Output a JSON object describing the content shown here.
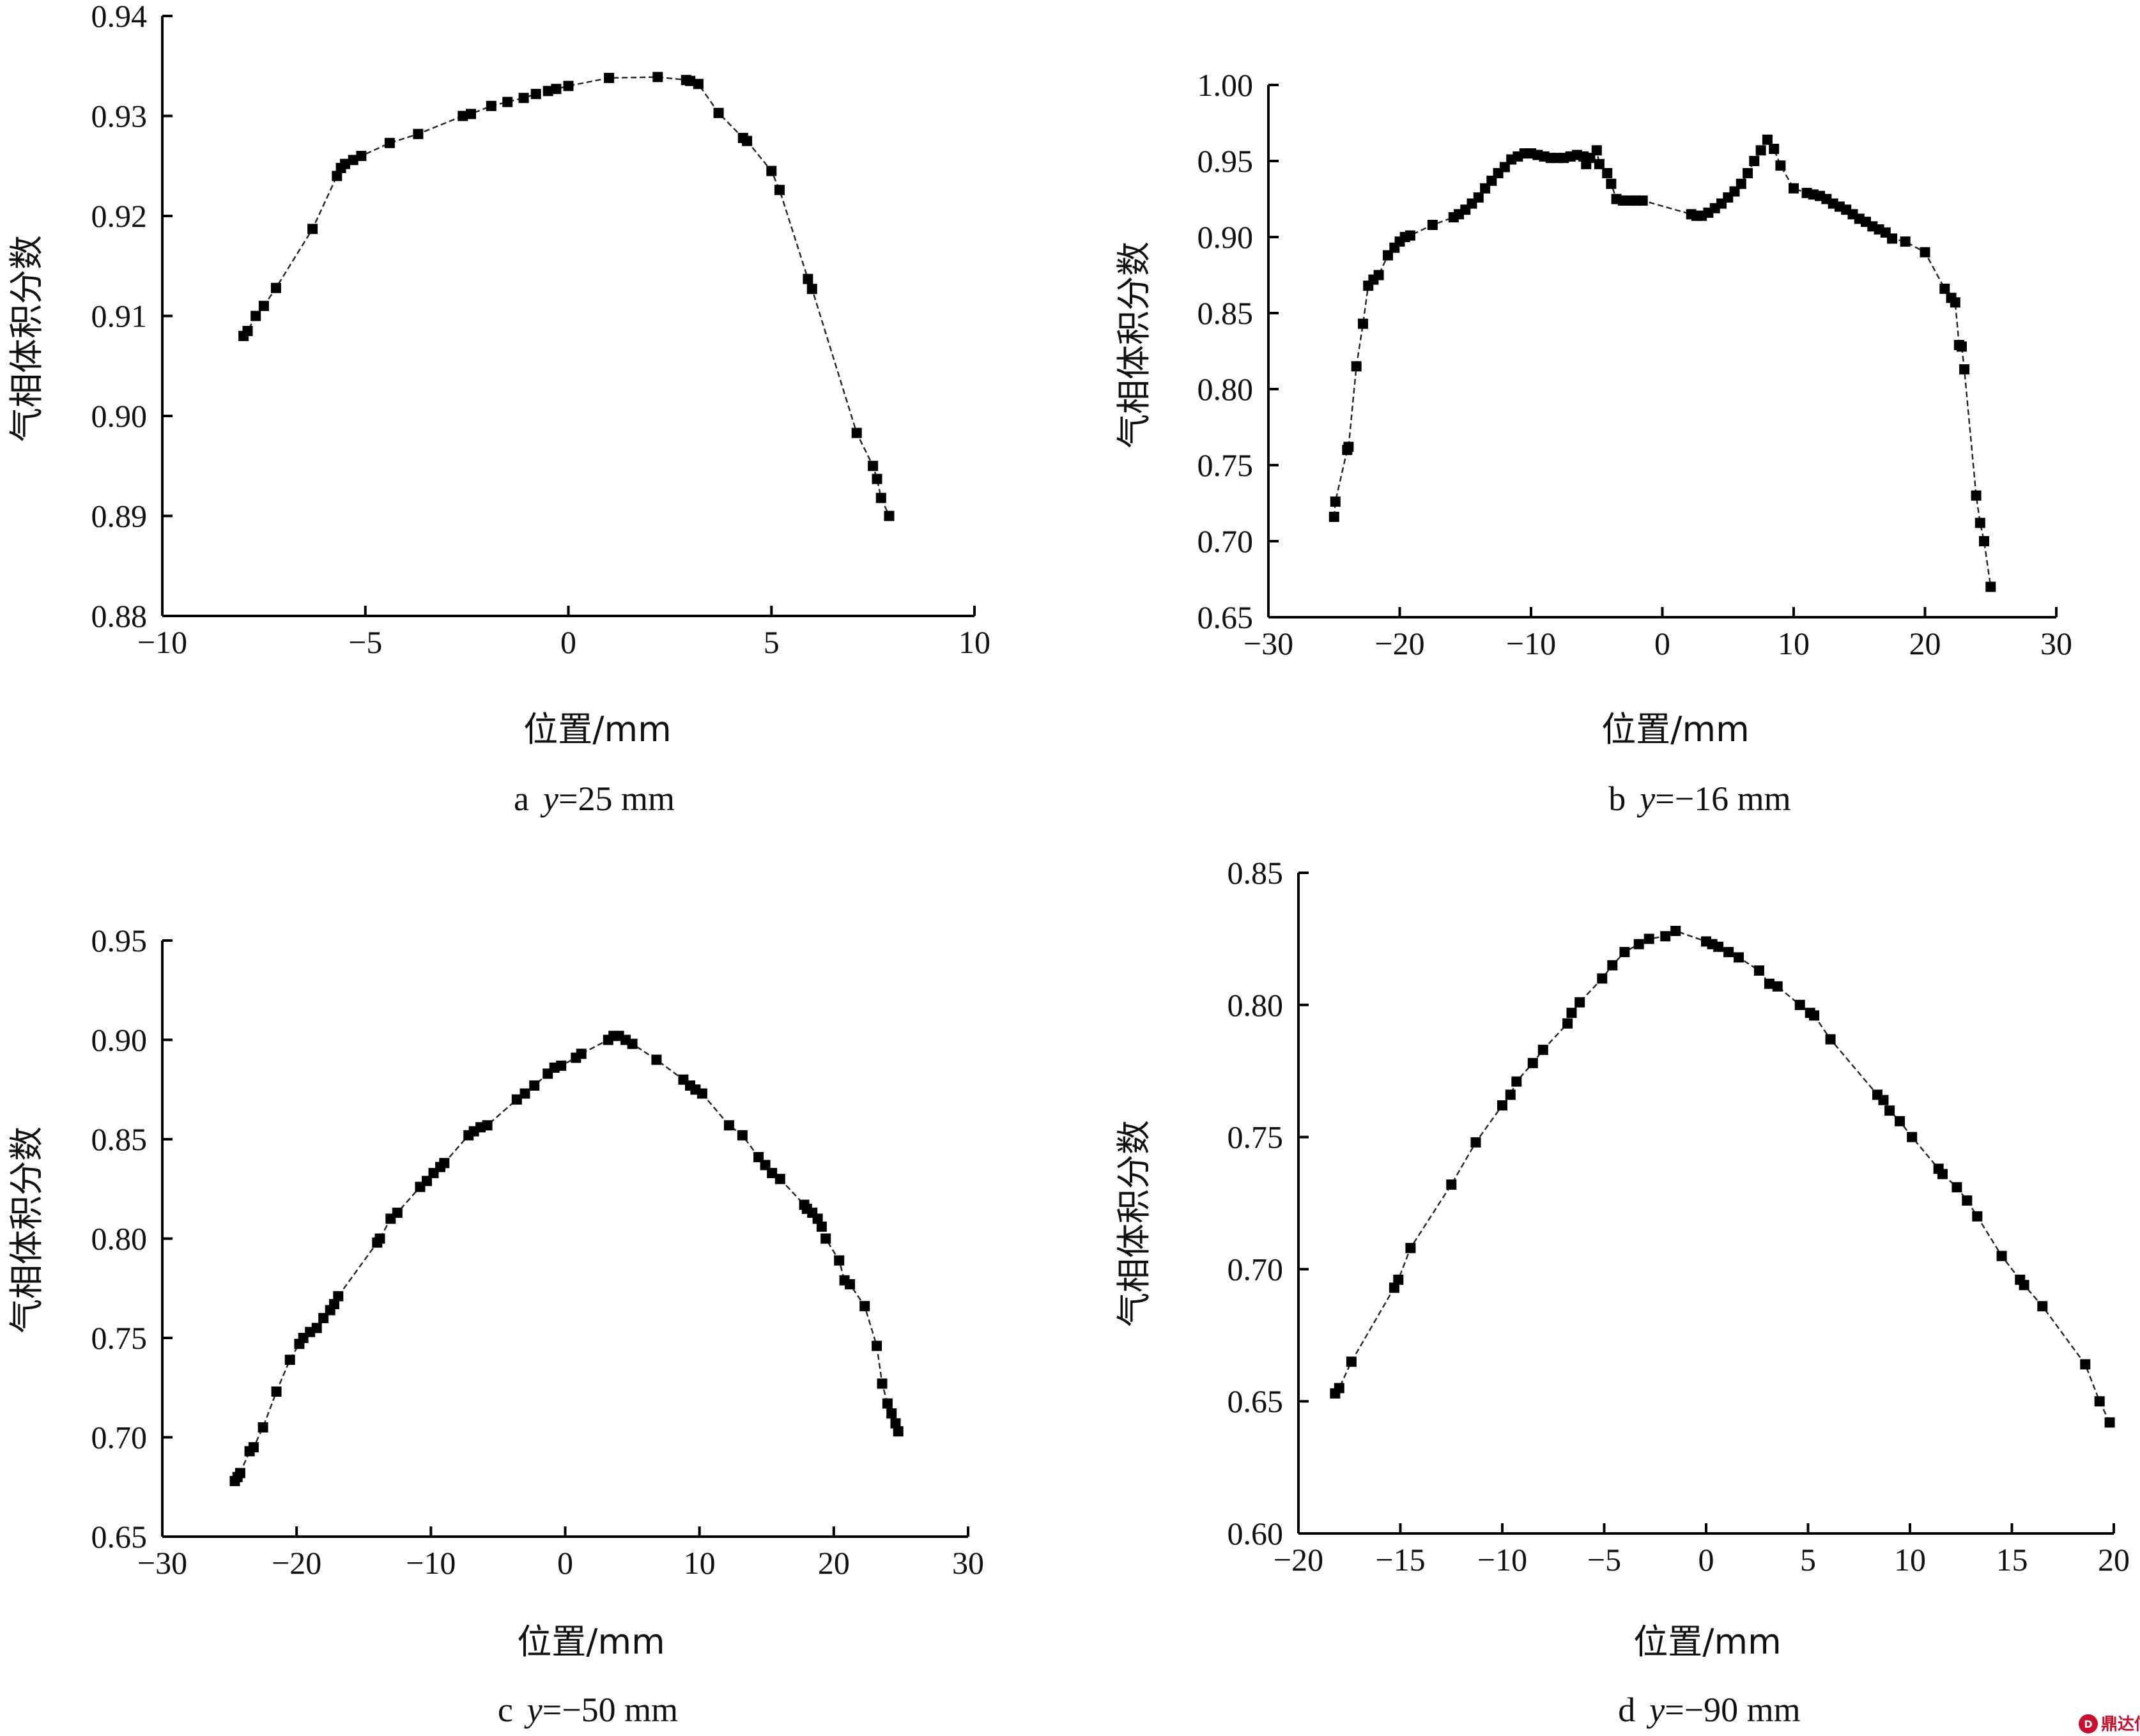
{
  "chart_data": [
    {
      "type": "scatter",
      "panel": "a",
      "caption_letter": "a",
      "caption_var": "y",
      "caption_value": "=25 mm",
      "xlabel": "位置/mm",
      "ylabel": "气相体积分数",
      "xlim": [
        -10,
        10
      ],
      "ylim": [
        0.88,
        0.94
      ],
      "xticks": [
        -10,
        -5,
        0,
        5,
        10
      ],
      "xtick_labels": [
        "−10",
        "−5",
        "0",
        "5",
        "10"
      ],
      "yticks": [
        0.88,
        0.89,
        0.9,
        0.91,
        0.92,
        0.93,
        0.94
      ],
      "ytick_labels": [
        "0.88",
        "0.89",
        "0.90",
        "0.91",
        "0.92",
        "0.93",
        "0.94"
      ],
      "x": [
        -8.0,
        -7.9,
        -7.7,
        -7.5,
        -7.2,
        -6.3,
        -5.7,
        -5.6,
        -5.5,
        -5.3,
        -5.1,
        -4.4,
        -3.7,
        -2.6,
        -2.4,
        -1.9,
        -1.5,
        -1.1,
        -0.8,
        -0.5,
        -0.3,
        0.0,
        1.0,
        2.2,
        2.9,
        3.0,
        3.2,
        3.7,
        4.3,
        4.4,
        5.0,
        5.2,
        5.9,
        6.0,
        7.1,
        7.5,
        7.6,
        7.7,
        7.9
      ],
      "y": [
        0.908,
        0.9085,
        0.91,
        0.911,
        0.9128,
        0.9187,
        0.924,
        0.9248,
        0.9252,
        0.9256,
        0.926,
        0.9273,
        0.9282,
        0.93,
        0.9302,
        0.931,
        0.9314,
        0.9318,
        0.9322,
        0.9325,
        0.9327,
        0.933,
        0.9338,
        0.9339,
        0.9336,
        0.9335,
        0.9332,
        0.9303,
        0.9278,
        0.9275,
        0.9245,
        0.9226,
        0.9137,
        0.9127,
        0.8983,
        0.895,
        0.8937,
        0.8918,
        0.89
      ]
    },
    {
      "type": "scatter",
      "panel": "b",
      "caption_letter": "b",
      "caption_var": "y",
      "caption_value": "=−16 mm",
      "xlabel": "位置/mm",
      "ylabel": "气相体积分数",
      "xlim": [
        -30,
        30
      ],
      "ylim": [
        0.65,
        1.0
      ],
      "xticks": [
        -30,
        -20,
        -10,
        0,
        10,
        20,
        30
      ],
      "xtick_labels": [
        "−30",
        "−20",
        "−10",
        "0",
        "10",
        "20",
        "30"
      ],
      "yticks": [
        0.65,
        0.7,
        0.75,
        0.8,
        0.85,
        0.9,
        0.95,
        1.0
      ],
      "ytick_labels": [
        "0.65",
        "0.70",
        "0.75",
        "0.80",
        "0.85",
        "0.90",
        "0.95",
        "1.00"
      ],
      "x": [
        -25.0,
        -24.9,
        -24.0,
        -23.9,
        -23.3,
        -22.8,
        -22.4,
        -22.0,
        -21.6,
        -20.9,
        -20.4,
        -20.0,
        -19.6,
        -19.2,
        -17.5,
        -15.9,
        -15.5,
        -15.0,
        -14.5,
        -14.0,
        -13.5,
        -13.0,
        -12.5,
        -12.0,
        -11.5,
        -11.0,
        -10.5,
        -10.0,
        -9.5,
        -9.0,
        -8.5,
        -8.0,
        -7.5,
        -7.0,
        -6.5,
        -6.0,
        -5.8,
        -5.5,
        -5.0,
        -4.8,
        -4.2,
        -3.9,
        -3.5,
        -3.0,
        -2.5,
        -2.0,
        -1.5,
        2.2,
        2.6,
        3.0,
        3.5,
        4.0,
        4.5,
        5.0,
        5.5,
        6.0,
        6.5,
        7.0,
        7.5,
        8.0,
        8.5,
        9.0,
        10.0,
        11.0,
        11.5,
        12.0,
        12.5,
        13.0,
        13.5,
        14.0,
        14.5,
        15.0,
        15.5,
        16.0,
        16.5,
        17.0,
        17.5,
        18.5,
        20.0,
        21.5,
        22.0,
        22.3,
        22.6,
        22.8,
        23.0,
        23.9,
        24.2,
        24.5,
        25.0
      ],
      "y": [
        0.716,
        0.726,
        0.76,
        0.762,
        0.815,
        0.843,
        0.868,
        0.872,
        0.875,
        0.888,
        0.893,
        0.897,
        0.9,
        0.901,
        0.908,
        0.913,
        0.915,
        0.918,
        0.922,
        0.926,
        0.932,
        0.937,
        0.942,
        0.946,
        0.951,
        0.953,
        0.955,
        0.955,
        0.954,
        0.953,
        0.952,
        0.952,
        0.952,
        0.953,
        0.954,
        0.953,
        0.948,
        0.952,
        0.957,
        0.948,
        0.942,
        0.935,
        0.925,
        0.924,
        0.924,
        0.924,
        0.924,
        0.915,
        0.914,
        0.914,
        0.916,
        0.919,
        0.922,
        0.926,
        0.93,
        0.935,
        0.942,
        0.95,
        0.957,
        0.964,
        0.958,
        0.947,
        0.932,
        0.929,
        0.928,
        0.927,
        0.925,
        0.922,
        0.92,
        0.918,
        0.915,
        0.912,
        0.91,
        0.907,
        0.905,
        0.903,
        0.899,
        0.897,
        0.89,
        0.866,
        0.86,
        0.857,
        0.829,
        0.828,
        0.813,
        0.73,
        0.712,
        0.7,
        0.67
      ]
    },
    {
      "type": "scatter",
      "panel": "c",
      "caption_letter": "c",
      "caption_var": "y",
      "caption_value": "=−50 mm",
      "xlabel": "位置/mm",
      "ylabel": "气相体积分数",
      "xlim": [
        -30,
        30
      ],
      "ylim": [
        0.65,
        0.95
      ],
      "xticks": [
        -30,
        -20,
        -10,
        0,
        10,
        20,
        30
      ],
      "xtick_labels": [
        "−30",
        "−20",
        "−10",
        "0",
        "10",
        "20",
        "30"
      ],
      "yticks": [
        0.65,
        0.7,
        0.75,
        0.8,
        0.85,
        0.9,
        0.95
      ],
      "ytick_labels": [
        "0.65",
        "0.70",
        "0.75",
        "0.80",
        "0.85",
        "0.90",
        "0.95"
      ],
      "x": [
        -24.6,
        -24.4,
        -24.2,
        -23.5,
        -23.2,
        -22.5,
        -21.5,
        -20.5,
        -19.8,
        -19.5,
        -19.0,
        -18.5,
        -18.0,
        -17.5,
        -17.2,
        -16.9,
        -14.0,
        -13.8,
        -13.0,
        -12.5,
        -10.8,
        -10.3,
        -9.8,
        -9.3,
        -9.0,
        -7.2,
        -6.8,
        -6.3,
        -5.8,
        -3.6,
        -3.0,
        -2.3,
        -1.3,
        -0.8,
        -0.3,
        0.8,
        1.2,
        3.2,
        3.6,
        4.0,
        4.5,
        5.0,
        6.8,
        8.8,
        9.3,
        9.7,
        10.2,
        12.2,
        13.2,
        14.4,
        14.9,
        15.4,
        16.0,
        17.8,
        18.0,
        18.4,
        18.8,
        19.1,
        19.4,
        20.4,
        20.8,
        21.2,
        22.3,
        23.2,
        23.6,
        24.0,
        24.3,
        24.6,
        24.8
      ],
      "y": [
        0.678,
        0.68,
        0.682,
        0.693,
        0.695,
        0.705,
        0.723,
        0.739,
        0.747,
        0.75,
        0.753,
        0.755,
        0.76,
        0.764,
        0.767,
        0.771,
        0.798,
        0.8,
        0.81,
        0.813,
        0.826,
        0.829,
        0.833,
        0.836,
        0.838,
        0.852,
        0.854,
        0.856,
        0.857,
        0.87,
        0.873,
        0.877,
        0.883,
        0.886,
        0.887,
        0.891,
        0.893,
        0.9,
        0.902,
        0.902,
        0.9,
        0.898,
        0.89,
        0.88,
        0.877,
        0.875,
        0.873,
        0.857,
        0.852,
        0.841,
        0.837,
        0.833,
        0.83,
        0.817,
        0.815,
        0.813,
        0.81,
        0.806,
        0.8,
        0.789,
        0.779,
        0.777,
        0.766,
        0.746,
        0.727,
        0.717,
        0.712,
        0.707,
        0.703
      ]
    },
    {
      "type": "scatter",
      "panel": "d",
      "caption_letter": "d",
      "caption_var": "y",
      "caption_value": "=−90 mm",
      "xlabel": "位置/mm",
      "ylabel": "气相体积分数",
      "xlim": [
        -20,
        20
      ],
      "ylim": [
        0.6,
        0.85
      ],
      "xticks": [
        -20,
        -15,
        -10,
        -5,
        0,
        5,
        10,
        15,
        20
      ],
      "xtick_labels": [
        "−20",
        "−15",
        "−10",
        "−5",
        "0",
        "5",
        "10",
        "15",
        "20"
      ],
      "yticks": [
        0.6,
        0.65,
        0.7,
        0.75,
        0.8,
        0.85
      ],
      "ytick_labels": [
        "0.60",
        "0.65",
        "0.70",
        "0.75",
        "0.80",
        "0.85"
      ],
      "x": [
        -18.2,
        -18.0,
        -17.4,
        -15.3,
        -15.1,
        -14.5,
        -12.5,
        -11.3,
        -10.0,
        -9.6,
        -9.3,
        -8.5,
        -8.0,
        -6.8,
        -6.6,
        -6.2,
        -5.1,
        -4.6,
        -4.0,
        -3.3,
        -2.8,
        -2.0,
        -1.5,
        0.0,
        0.3,
        0.6,
        1.1,
        1.6,
        2.6,
        3.1,
        3.5,
        4.6,
        5.1,
        5.3,
        6.1,
        8.4,
        8.7,
        9.0,
        9.5,
        10.1,
        11.4,
        11.6,
        12.3,
        12.8,
        13.3,
        14.5,
        15.4,
        15.6,
        16.5,
        18.6,
        19.3,
        19.8
      ],
      "y": [
        0.653,
        0.655,
        0.665,
        0.693,
        0.696,
        0.708,
        0.732,
        0.748,
        0.762,
        0.766,
        0.771,
        0.778,
        0.783,
        0.793,
        0.797,
        0.801,
        0.81,
        0.815,
        0.82,
        0.823,
        0.825,
        0.826,
        0.828,
        0.824,
        0.823,
        0.822,
        0.82,
        0.818,
        0.813,
        0.808,
        0.807,
        0.8,
        0.797,
        0.796,
        0.787,
        0.766,
        0.764,
        0.76,
        0.756,
        0.75,
        0.738,
        0.736,
        0.731,
        0.726,
        0.72,
        0.705,
        0.696,
        0.694,
        0.686,
        0.664,
        0.65,
        0.642
      ]
    }
  ],
  "watermark": {
    "text": "鼎达信"
  }
}
